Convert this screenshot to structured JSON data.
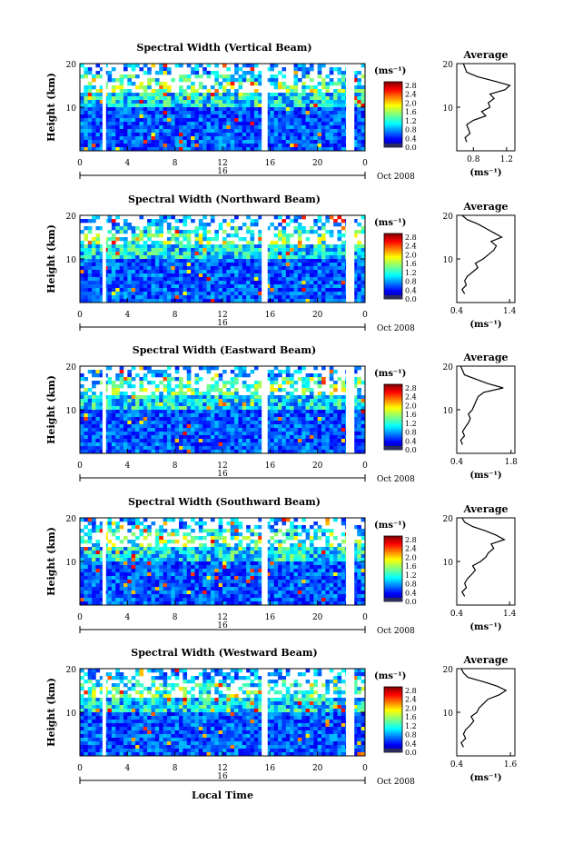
{
  "chart_data": [
    {
      "type": "heatmap",
      "title": "Spectral Width (Vertical Beam)",
      "ylabel": "Height (km)",
      "yticks": [
        "20",
        "10"
      ],
      "ylim": [
        0,
        20
      ],
      "xticks": [
        "0",
        "4",
        "8",
        "12",
        "16",
        "20",
        "0"
      ],
      "xlim": [
        0,
        24
      ],
      "date_marker": "16",
      "date_label": "Oct 2008",
      "colorbar": {
        "unit": "(ms⁻¹)",
        "ticks": [
          "2.8",
          "2.4",
          "2.0",
          "1.6",
          "1.2",
          "0.8",
          "0.4",
          "0.0"
        ],
        "range": [
          0,
          2.8
        ]
      },
      "data_gaps_hours": [
        [
          1.9,
          2.2
        ],
        [
          15.3,
          15.8
        ],
        [
          22.4,
          23.1
        ]
      ],
      "profile": {
        "title": "Average",
        "xlabel": "(ms⁻¹)",
        "xticks": [
          "0.8",
          "1.2"
        ],
        "xlim": [
          0.6,
          1.3
        ],
        "yticks": [
          "20",
          "10"
        ],
        "height_km": [
          2,
          3,
          4,
          5,
          6,
          7,
          8,
          9,
          10,
          11,
          12,
          13,
          14,
          15,
          16,
          17,
          18,
          19,
          20
        ],
        "width_ms": [
          0.72,
          0.7,
          0.76,
          0.74,
          0.72,
          0.8,
          0.95,
          0.9,
          1.0,
          0.98,
          1.05,
          1.0,
          1.18,
          1.24,
          1.05,
          0.85,
          0.72,
          0.7,
          0.68
        ]
      }
    },
    {
      "type": "heatmap",
      "title": "Spectral Width (Northward Beam)",
      "ylabel": "Height (km)",
      "yticks": [
        "20",
        "10"
      ],
      "ylim": [
        0,
        20
      ],
      "xticks": [
        "0",
        "4",
        "8",
        "12",
        "16",
        "20",
        "0"
      ],
      "xlim": [
        0,
        24
      ],
      "date_marker": "16",
      "date_label": "Oct 2008",
      "colorbar": {
        "unit": "(ms⁻¹)",
        "ticks": [
          "2.8",
          "2.4",
          "2.0",
          "1.6",
          "1.2",
          "0.8",
          "0.4",
          "0.0"
        ],
        "range": [
          0,
          2.8
        ]
      },
      "data_gaps_hours": [
        [
          1.9,
          2.2
        ],
        [
          15.3,
          15.8
        ],
        [
          22.4,
          23.1
        ]
      ],
      "profile": {
        "title": "Average",
        "xlabel": "(ms⁻¹)",
        "xticks": [
          "0.4",
          "1.4"
        ],
        "xlim": [
          0.4,
          1.5
        ],
        "yticks": [
          "20",
          "10"
        ],
        "height_km": [
          2,
          3,
          4,
          5,
          6,
          7,
          8,
          9,
          10,
          11,
          12,
          13,
          14,
          15,
          16,
          17,
          18,
          19,
          20
        ],
        "width_ms": [
          0.55,
          0.5,
          0.58,
          0.55,
          0.6,
          0.7,
          0.8,
          0.75,
          0.9,
          1.0,
          1.1,
          1.15,
          1.05,
          1.25,
          1.1,
          0.95,
          0.8,
          0.6,
          0.5
        ]
      }
    },
    {
      "type": "heatmap",
      "title": "Spectral Width (Eastward Beam)",
      "ylabel": "Height (km)",
      "yticks": [
        "20",
        "10"
      ],
      "ylim": [
        0,
        20
      ],
      "xticks": [
        "0",
        "4",
        "8",
        "12",
        "16",
        "20",
        "0"
      ],
      "xlim": [
        0,
        24
      ],
      "date_marker": "16",
      "date_label": "Oct 2008",
      "colorbar": {
        "unit": "(ms⁻¹)",
        "ticks": [
          "2.8",
          "2.4",
          "2.0",
          "1.6",
          "1.2",
          "0.8",
          "0.4",
          "0.0"
        ],
        "range": [
          0,
          2.8
        ]
      },
      "data_gaps_hours": [
        [
          1.9,
          2.2
        ],
        [
          15.3,
          15.8
        ],
        [
          22.4,
          23.1
        ]
      ],
      "profile": {
        "title": "Average",
        "xlabel": "(ms⁻¹)",
        "xticks": [
          "0.4",
          "1.8"
        ],
        "xlim": [
          0.4,
          1.9
        ],
        "yticks": [
          "20",
          "10"
        ],
        "height_km": [
          2,
          3,
          4,
          5,
          6,
          7,
          8,
          9,
          10,
          11,
          12,
          13,
          14,
          15,
          16,
          17,
          18,
          19,
          20
        ],
        "width_ms": [
          0.55,
          0.5,
          0.6,
          0.55,
          0.62,
          0.7,
          0.75,
          0.7,
          0.8,
          0.85,
          0.9,
          0.95,
          1.1,
          1.6,
          1.2,
          0.9,
          0.6,
          0.55,
          0.5
        ]
      }
    },
    {
      "type": "heatmap",
      "title": "Spectral Width (Southward Beam)",
      "ylabel": "Height (km)",
      "yticks": [
        "20",
        "10"
      ],
      "ylim": [
        0,
        20
      ],
      "xticks": [
        "0",
        "4",
        "8",
        "12",
        "16",
        "20",
        "0"
      ],
      "xlim": [
        0,
        24
      ],
      "date_marker": "16",
      "date_label": "Oct 2008",
      "colorbar": {
        "unit": "(ms⁻¹)",
        "ticks": [
          "2.8",
          "2.4",
          "2.0",
          "1.6",
          "1.2",
          "0.8",
          "0.4",
          "0.0"
        ],
        "range": [
          0,
          2.8
        ]
      },
      "data_gaps_hours": [
        [
          1.9,
          2.2
        ],
        [
          15.3,
          15.8
        ],
        [
          22.4,
          23.1
        ]
      ],
      "profile": {
        "title": "Average",
        "xlabel": "(ms⁻¹)",
        "xticks": [
          "0.4",
          "1.4"
        ],
        "xlim": [
          0.4,
          1.5
        ],
        "yticks": [
          "20",
          "10"
        ],
        "height_km": [
          2,
          3,
          4,
          5,
          6,
          7,
          8,
          9,
          10,
          11,
          12,
          13,
          14,
          15,
          16,
          17,
          18,
          19,
          20
        ],
        "width_ms": [
          0.55,
          0.5,
          0.58,
          0.55,
          0.6,
          0.68,
          0.75,
          0.7,
          0.85,
          0.95,
          1.0,
          1.1,
          1.05,
          1.3,
          1.15,
          0.95,
          0.7,
          0.55,
          0.5
        ]
      }
    },
    {
      "type": "heatmap",
      "title": "Spectral Width (Westward Beam)",
      "ylabel": "Height (km)",
      "yticks": [
        "20",
        "10"
      ],
      "ylim": [
        0,
        20
      ],
      "xticks": [
        "0",
        "4",
        "8",
        "12",
        "16",
        "20",
        "0"
      ],
      "xlim": [
        0,
        24
      ],
      "date_marker": "16",
      "date_label": "Oct 2008",
      "colorbar": {
        "unit": "(ms⁻¹)",
        "ticks": [
          "2.8",
          "2.4",
          "2.0",
          "1.6",
          "1.2",
          "0.8",
          "0.4",
          "0.0"
        ],
        "range": [
          0,
          2.8
        ]
      },
      "data_gaps_hours": [
        [
          1.9,
          2.2
        ],
        [
          15.3,
          15.8
        ],
        [
          22.4,
          23.1
        ]
      ],
      "profile": {
        "title": "Average",
        "xlabel": "(ms⁻¹)",
        "xticks": [
          "0.4",
          "1.6"
        ],
        "xlim": [
          0.4,
          1.7
        ],
        "yticks": [
          "20",
          "10"
        ],
        "height_km": [
          2,
          3,
          4,
          5,
          6,
          7,
          8,
          9,
          10,
          11,
          12,
          13,
          14,
          15,
          16,
          17,
          18,
          19,
          20
        ],
        "width_ms": [
          0.55,
          0.5,
          0.6,
          0.55,
          0.6,
          0.7,
          0.78,
          0.72,
          0.85,
          0.9,
          1.0,
          1.1,
          1.35,
          1.5,
          1.3,
          1.0,
          0.65,
          0.55,
          0.5
        ]
      }
    }
  ],
  "footer": {
    "xlabel": "Local Time"
  }
}
